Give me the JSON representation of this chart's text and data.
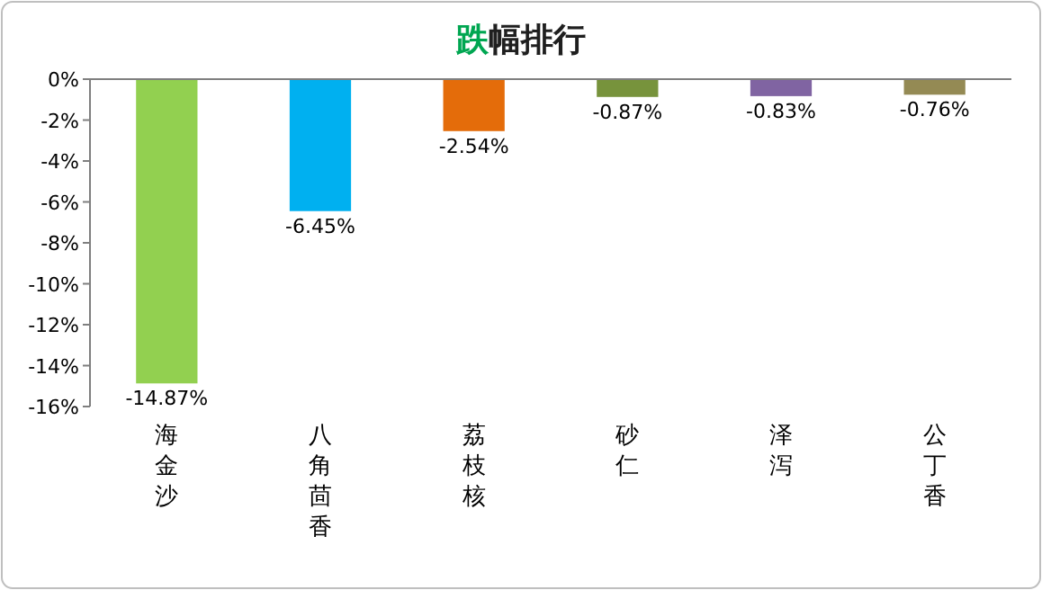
{
  "chart_data": {
    "type": "bar",
    "title": "跌幅排行",
    "categories": [
      "海金沙",
      "八角茴香",
      "荔枝核",
      "砂仁",
      "泽泻",
      "公丁香"
    ],
    "values": [
      -14.87,
      -6.45,
      -2.54,
      -0.87,
      -0.83,
      -0.76
    ],
    "colors": [
      "#92d050",
      "#00b0f0",
      "#e46c0a",
      "#77933c",
      "#8064a2",
      "#948a54"
    ],
    "value_labels": [
      "-14.87%",
      "-6.45%",
      "-2.54%",
      "-0.87%",
      "-0.83%",
      "-0.76%"
    ],
    "ylim": [
      -16,
      0
    ],
    "yticks": [
      {
        "value": 0,
        "label": "0%"
      },
      {
        "value": -2,
        "label": "-2%"
      },
      {
        "value": -4,
        "label": "-4%"
      },
      {
        "value": -6,
        "label": "-6%"
      },
      {
        "value": -8,
        "label": "-8%"
      },
      {
        "value": -10,
        "label": "-10%"
      },
      {
        "value": -12,
        "label": "-12%"
      },
      {
        "value": -14,
        "label": "-14%"
      },
      {
        "value": -16,
        "label": "-16%"
      }
    ],
    "grid": false
  }
}
